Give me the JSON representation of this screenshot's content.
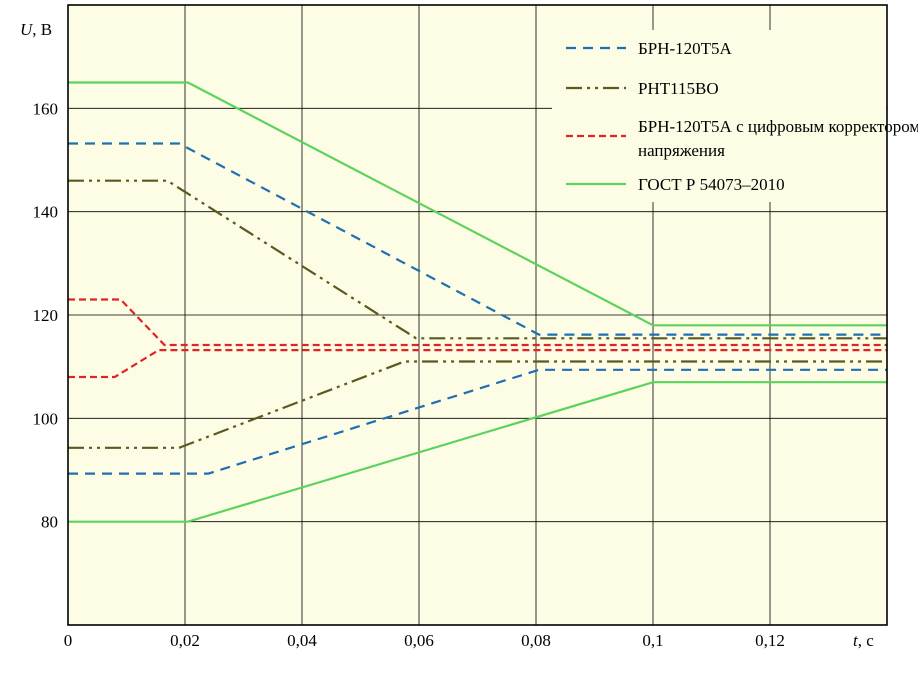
{
  "chart_data": {
    "type": "line",
    "ylabel_symbol": "U",
    "ylabel_unit": ", В",
    "xlabel_symbol": "t",
    "xlabel_unit": ", с",
    "xlim": [
      0,
      0.14
    ],
    "ylim": [
      60,
      180
    ],
    "grid": true,
    "background_color": "#fdfde6",
    "x_ticks": [
      {
        "value": 0,
        "label": "0"
      },
      {
        "value": 0.02,
        "label": "0,02"
      },
      {
        "value": 0.04,
        "label": "0,04"
      },
      {
        "value": 0.06,
        "label": "0,06"
      },
      {
        "value": 0.08,
        "label": "0,08"
      },
      {
        "value": 0.1,
        "label": "0,1"
      },
      {
        "value": 0.12,
        "label": "0,12"
      }
    ],
    "y_ticks": [
      {
        "value": 80,
        "label": "80"
      },
      {
        "value": 100,
        "label": "100"
      },
      {
        "value": 120,
        "label": "120"
      },
      {
        "value": 140,
        "label": "140"
      },
      {
        "value": 160,
        "label": "160"
      }
    ],
    "legend_position": "top-right",
    "series": [
      {
        "name": "БРН-120Т5А",
        "color": "#1f6fb2",
        "dash": "10,7",
        "lines": [
          [
            [
              0,
              153.2
            ],
            [
              0.019,
              153.2
            ],
            [
              0.0805,
              116.2
            ],
            [
              0.14,
              116.2
            ]
          ],
          [
            [
              0,
              89.3
            ],
            [
              0.024,
              89.3
            ],
            [
              0.0805,
              109.4
            ],
            [
              0.14,
              109.4
            ]
          ]
        ]
      },
      {
        "name": "РНТ115ВО",
        "color": "#5a5a1e",
        "dash": "16,5,3,5,3,5",
        "lines": [
          [
            [
              0,
              146
            ],
            [
              0.017,
              146
            ],
            [
              0.0595,
              115.5
            ],
            [
              0.14,
              115.5
            ]
          ],
          [
            [
              0,
              94.3
            ],
            [
              0.019,
              94.3
            ],
            [
              0.0575,
              111
            ],
            [
              0.14,
              111
            ]
          ]
        ]
      },
      {
        "name": "БРН-120Т5А с цифровым корректором напряжения",
        "color": "#e02424",
        "dash": "7,4",
        "lines": [
          [
            [
              0,
              123
            ],
            [
              0.009,
              123
            ],
            [
              0.0165,
              114.2
            ],
            [
              0.14,
              114.2
            ]
          ],
          [
            [
              0,
              108
            ],
            [
              0.008,
              108
            ],
            [
              0.0155,
              113.2
            ],
            [
              0.14,
              113.2
            ]
          ]
        ]
      },
      {
        "name": "ГОСТ Р 54073–2010",
        "color": "#5cd35c",
        "dash": "none",
        "lines": [
          [
            [
              0,
              165
            ],
            [
              0.0205,
              165
            ],
            [
              0.1,
              118
            ],
            [
              0.14,
              118
            ]
          ],
          [
            [
              0,
              80
            ],
            [
              0.0205,
              80
            ],
            [
              0.1,
              107
            ],
            [
              0.14,
              107
            ]
          ]
        ]
      }
    ]
  }
}
